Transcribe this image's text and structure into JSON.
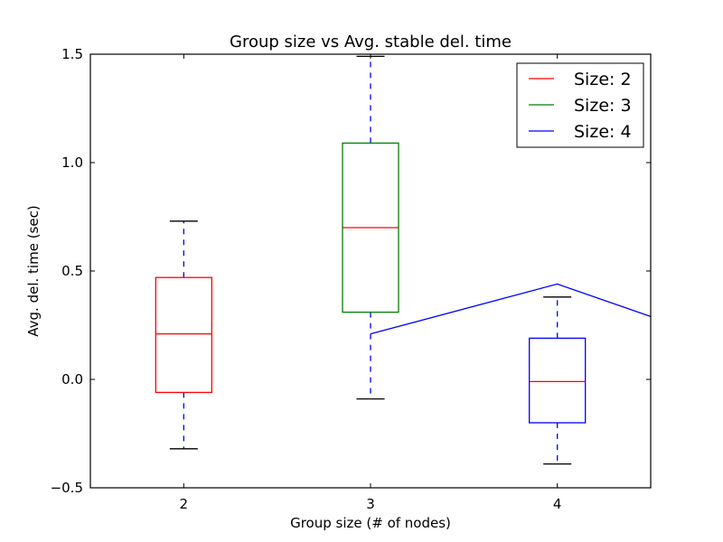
{
  "chart_data": {
    "type": "box",
    "title": "Group size vs Avg. stable del. time",
    "xlabel": "Group size (# of nodes)",
    "ylabel": "Avg. del. time (sec)",
    "xlim": [
      1.5,
      4.5
    ],
    "ylim": [
      -0.5,
      1.5
    ],
    "xticks": [
      2,
      3,
      4
    ],
    "yticks": [
      -0.5,
      0.0,
      0.5,
      1.0,
      1.5
    ],
    "ytick_labels": [
      "−0.5",
      "0.0",
      "0.5",
      "1.0",
      "1.5"
    ],
    "boxes": [
      {
        "x": 2,
        "color": "#ff0000",
        "whisker_low": -0.32,
        "q1": -0.06,
        "median": 0.21,
        "q3": 0.47,
        "whisker_high": 0.73
      },
      {
        "x": 3,
        "color": "#008000",
        "whisker_low": -0.09,
        "q1": 0.31,
        "median": 0.7,
        "q3": 1.09,
        "whisker_high": 1.49
      },
      {
        "x": 4,
        "color": "#0000ff",
        "whisker_low": -0.39,
        "q1": -0.2,
        "median": -0.01,
        "q3": 0.19,
        "whisker_high": 0.38
      }
    ],
    "median_color": "#ff0000",
    "whisker_color": "#0000ff",
    "cap_color": "#000000",
    "extra_line": {
      "color": "#0000ff",
      "x": [
        3,
        4,
        4.5
      ],
      "y": [
        0.21,
        0.44,
        0.29
      ]
    },
    "legend": {
      "position": "top-right",
      "entries": [
        {
          "label": "Size: 2",
          "color": "#ff0000"
        },
        {
          "label": "Size: 3",
          "color": "#008000"
        },
        {
          "label": "Size: 4",
          "color": "#0000ff"
        }
      ]
    }
  }
}
